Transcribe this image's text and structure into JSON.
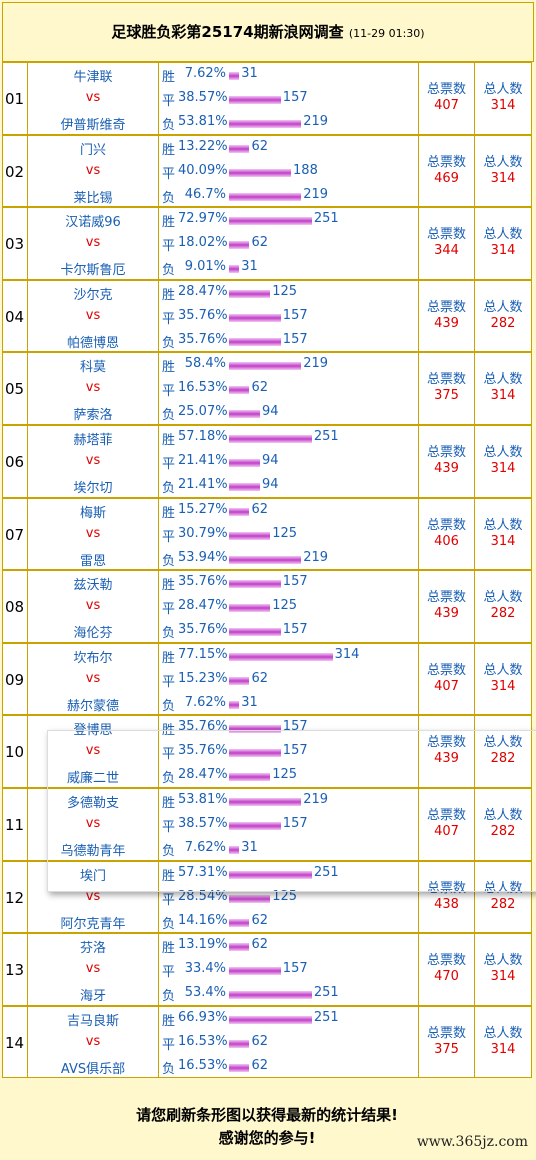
{
  "header": {
    "title": "足球胜负彩第25174期新浪网调查",
    "time": "(11-29 01:30)"
  },
  "rows": [
    {
      "no": "01",
      "home": "牛津联",
      "vs": "vs",
      "away": "伊普斯维奇",
      "outcomes": [
        {
          "label": "胜",
          "percent": "7.62%",
          "count": 31
        },
        {
          "label": "平",
          "percent": "38.57%",
          "count": 157
        },
        {
          "label": "负",
          "percent": "53.81%",
          "count": 219
        }
      ],
      "votes_label": "总票数",
      "votes": 407,
      "people_label": "总人数",
      "people": 314
    },
    {
      "no": "02",
      "home": "门兴",
      "vs": "vs",
      "away": "莱比锡",
      "outcomes": [
        {
          "label": "胜",
          "percent": "13.22%",
          "count": 62
        },
        {
          "label": "平",
          "percent": "40.09%",
          "count": 188
        },
        {
          "label": "负",
          "percent": "46.7%",
          "count": 219
        }
      ],
      "votes_label": "总票数",
      "votes": 469,
      "people_label": "总人数",
      "people": 314
    },
    {
      "no": "03",
      "home": "汉诺威96",
      "vs": "vs",
      "away": "卡尔斯鲁厄",
      "outcomes": [
        {
          "label": "胜",
          "percent": "72.97%",
          "count": 251
        },
        {
          "label": "平",
          "percent": "18.02%",
          "count": 62
        },
        {
          "label": "负",
          "percent": "9.01%",
          "count": 31
        }
      ],
      "votes_label": "总票数",
      "votes": 344,
      "people_label": "总人数",
      "people": 314
    },
    {
      "no": "04",
      "home": "沙尔克",
      "vs": "vs",
      "away": "帕德博恩",
      "outcomes": [
        {
          "label": "胜",
          "percent": "28.47%",
          "count": 125
        },
        {
          "label": "平",
          "percent": "35.76%",
          "count": 157
        },
        {
          "label": "负",
          "percent": "35.76%",
          "count": 157
        }
      ],
      "votes_label": "总票数",
      "votes": 439,
      "people_label": "总人数",
      "people": 282
    },
    {
      "no": "05",
      "home": "科莫",
      "vs": "vs",
      "away": "萨索洛",
      "outcomes": [
        {
          "label": "胜",
          "percent": "58.4%",
          "count": 219
        },
        {
          "label": "平",
          "percent": "16.53%",
          "count": 62
        },
        {
          "label": "负",
          "percent": "25.07%",
          "count": 94
        }
      ],
      "votes_label": "总票数",
      "votes": 375,
      "people_label": "总人数",
      "people": 314
    },
    {
      "no": "06",
      "home": "赫塔菲",
      "vs": "vs",
      "away": "埃尔切",
      "outcomes": [
        {
          "label": "胜",
          "percent": "57.18%",
          "count": 251
        },
        {
          "label": "平",
          "percent": "21.41%",
          "count": 94
        },
        {
          "label": "负",
          "percent": "21.41%",
          "count": 94
        }
      ],
      "votes_label": "总票数",
      "votes": 439,
      "people_label": "总人数",
      "people": 314
    },
    {
      "no": "07",
      "home": "梅斯",
      "vs": "vs",
      "away": "雷恩",
      "outcomes": [
        {
          "label": "胜",
          "percent": "15.27%",
          "count": 62
        },
        {
          "label": "平",
          "percent": "30.79%",
          "count": 125
        },
        {
          "label": "负",
          "percent": "53.94%",
          "count": 219
        }
      ],
      "votes_label": "总票数",
      "votes": 406,
      "people_label": "总人数",
      "people": 314
    },
    {
      "no": "08",
      "home": "兹沃勒",
      "vs": "vs",
      "away": "海伦芬",
      "outcomes": [
        {
          "label": "胜",
          "percent": "35.76%",
          "count": 157
        },
        {
          "label": "平",
          "percent": "28.47%",
          "count": 125
        },
        {
          "label": "负",
          "percent": "35.76%",
          "count": 157
        }
      ],
      "votes_label": "总票数",
      "votes": 439,
      "people_label": "总人数",
      "people": 282
    },
    {
      "no": "09",
      "home": "坎布尔",
      "vs": "vs",
      "away": "赫尔蒙德",
      "outcomes": [
        {
          "label": "胜",
          "percent": "77.15%",
          "count": 314
        },
        {
          "label": "平",
          "percent": "15.23%",
          "count": 62
        },
        {
          "label": "负",
          "percent": "7.62%",
          "count": 31
        }
      ],
      "votes_label": "总票数",
      "votes": 407,
      "people_label": "总人数",
      "people": 314
    },
    {
      "no": "10",
      "home": "登博思",
      "vs": "vs",
      "away": "威廉二世",
      "outcomes": [
        {
          "label": "胜",
          "percent": "35.76%",
          "count": 157
        },
        {
          "label": "平",
          "percent": "35.76%",
          "count": 157
        },
        {
          "label": "负",
          "percent": "28.47%",
          "count": 125
        }
      ],
      "votes_label": "总票数",
      "votes": 439,
      "people_label": "总人数",
      "people": 282
    },
    {
      "no": "11",
      "home": "多德勒支",
      "vs": "vs",
      "away": "乌德勒青年",
      "outcomes": [
        {
          "label": "胜",
          "percent": "53.81%",
          "count": 219
        },
        {
          "label": "平",
          "percent": "38.57%",
          "count": 157
        },
        {
          "label": "负",
          "percent": "7.62%",
          "count": 31
        }
      ],
      "votes_label": "总票数",
      "votes": 407,
      "people_label": "总人数",
      "people": 282
    },
    {
      "no": "12",
      "home": "埃门",
      "vs": "vs",
      "away": "阿尔克青年",
      "outcomes": [
        {
          "label": "胜",
          "percent": "57.31%",
          "count": 251
        },
        {
          "label": "平",
          "percent": "28.54%",
          "count": 125
        },
        {
          "label": "负",
          "percent": "14.16%",
          "count": 62
        }
      ],
      "votes_label": "总票数",
      "votes": 438,
      "people_label": "总人数",
      "people": 282
    },
    {
      "no": "13",
      "home": "芬洛",
      "vs": "vs",
      "away": "海牙",
      "outcomes": [
        {
          "label": "胜",
          "percent": "13.19%",
          "count": 62
        },
        {
          "label": "平",
          "percent": "33.4%",
          "count": 157
        },
        {
          "label": "负",
          "percent": "53.4%",
          "count": 251
        }
      ],
      "votes_label": "总票数",
      "votes": 470,
      "people_label": "总人数",
      "people": 314
    },
    {
      "no": "14",
      "home": "吉马良斯",
      "vs": "vs",
      "away": "AVS俱乐部",
      "outcomes": [
        {
          "label": "胜",
          "percent": "66.93%",
          "count": 251
        },
        {
          "label": "平",
          "percent": "16.53%",
          "count": 62
        },
        {
          "label": "负",
          "percent": "16.53%",
          "count": 62
        }
      ],
      "votes_label": "总票数",
      "votes": 375,
      "people_label": "总人数",
      "people": 314
    }
  ],
  "footer": {
    "line1": "请您刷新条形图以获得最新的统计结果!",
    "line2": "感谢您的参与!"
  },
  "watermark": "www.365jz.com"
}
